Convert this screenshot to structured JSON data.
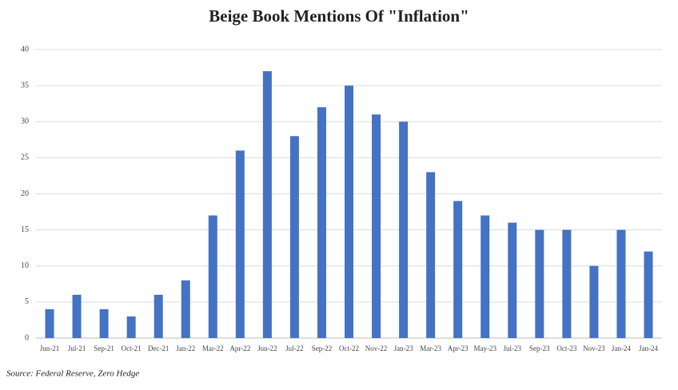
{
  "chart_data": {
    "type": "bar",
    "title": "Beige Book Mentions Of  \"Inflation\"",
    "categories": [
      "Jun-21",
      "Jul-21",
      "Sep-21",
      "Oct-21",
      "Dec-21",
      "Jan-22",
      "Mar-22",
      "Apr-22",
      "Jun-22",
      "Jul-22",
      "Sep-22",
      "Oct-22",
      "Nov-22",
      "Jan-23",
      "Mar-23",
      "Apr-23",
      "May-23",
      "Jul-23",
      "Sep-23",
      "Oct-23",
      "Nov-23",
      "Jan-24",
      "Jan-24"
    ],
    "values": [
      4,
      6,
      4,
      3,
      6,
      8,
      17,
      26,
      37,
      28,
      32,
      35,
      31,
      30,
      23,
      19,
      17,
      16,
      15,
      15,
      10,
      15,
      12
    ],
    "color": "#4472c4",
    "ylim": [
      0,
      40
    ],
    "yticks": [
      0,
      5,
      10,
      15,
      20,
      25,
      30,
      35,
      40
    ],
    "grid": true,
    "source": "Source: Federal Reserve, Zero Hedge"
  }
}
